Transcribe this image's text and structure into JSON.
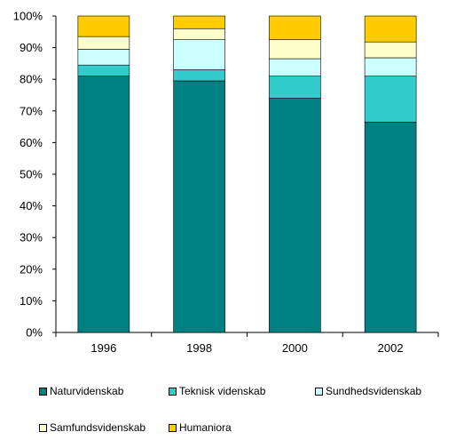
{
  "chart_data": {
    "type": "bar",
    "stacked": true,
    "percent": true,
    "categories": [
      "1996",
      "1998",
      "2000",
      "2002"
    ],
    "series": [
      {
        "name": "Naturvidenskab",
        "color": "#008080",
        "values": [
          81,
          79.5,
          74,
          66.5
        ]
      },
      {
        "name": "Teknisk videnskab",
        "color": "#33CCCC",
        "values": [
          3.5,
          3.5,
          7,
          14.5
        ]
      },
      {
        "name": "Sundhedsvidenskab",
        "color": "#CCFFFF",
        "values": [
          5,
          9.5,
          5.5,
          5.8
        ]
      },
      {
        "name": "Samfundsvidenskab",
        "color": "#FFFFCC",
        "values": [
          4,
          3.5,
          6,
          5
        ]
      },
      {
        "name": "Humaniora",
        "color": "#FFCC00",
        "values": [
          6.5,
          4,
          7.5,
          8.2
        ]
      }
    ],
    "ylim": [
      0,
      100
    ],
    "yticks": [
      "0%",
      "10%",
      "20%",
      "30%",
      "40%",
      "50%",
      "60%",
      "70%",
      "80%",
      "90%",
      "100%"
    ],
    "grid": false,
    "legend_position": "bottom"
  }
}
